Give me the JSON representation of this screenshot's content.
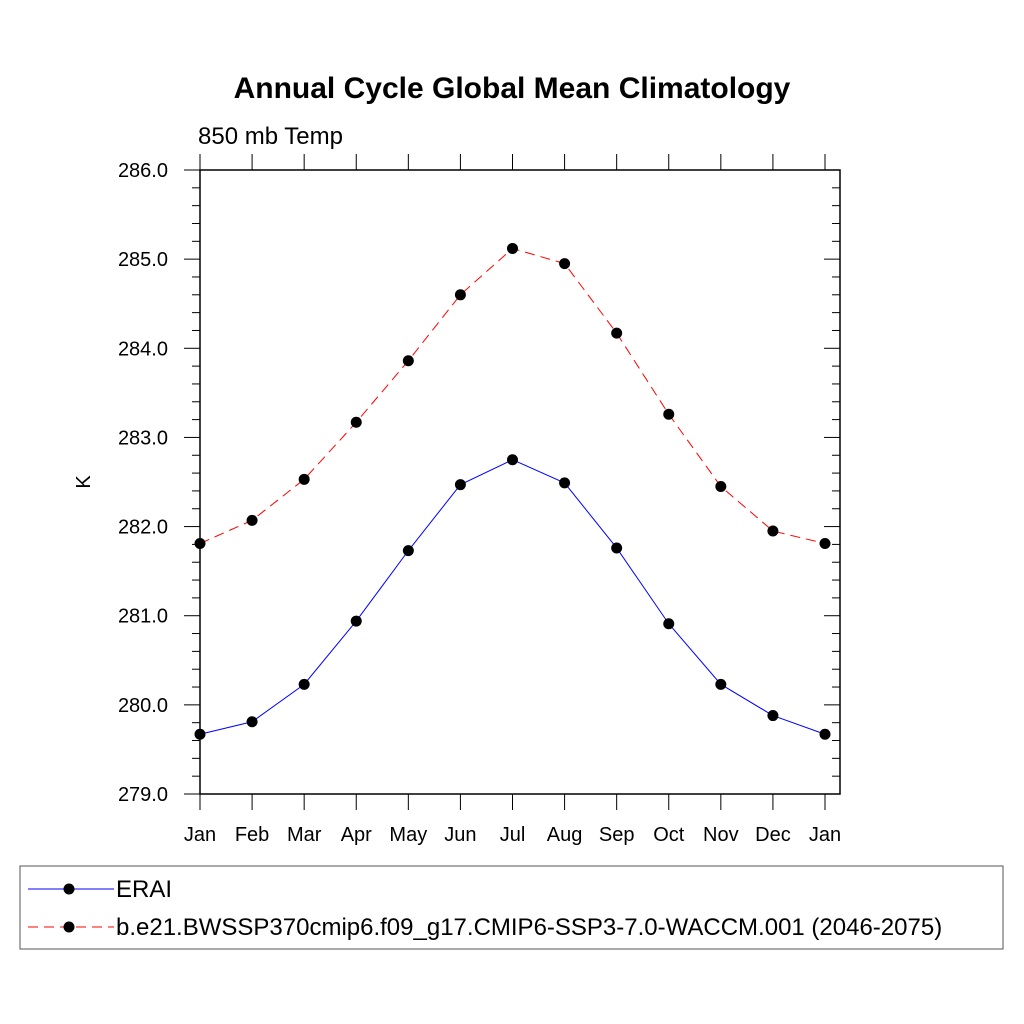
{
  "chart_data": {
    "type": "line",
    "title": "Annual Cycle Global Mean Climatology",
    "subtitle": "850 mb Temp",
    "xlabel": "",
    "ylabel": "K",
    "categories": [
      "Jan",
      "Feb",
      "Mar",
      "Apr",
      "May",
      "Jun",
      "Jul",
      "Aug",
      "Sep",
      "Oct",
      "Nov",
      "Dec",
      "Jan"
    ],
    "ylim": [
      279.0,
      286.0
    ],
    "yticks": [
      "279.0",
      "280.0",
      "281.0",
      "282.0",
      "283.0",
      "284.0",
      "285.0",
      "286.0"
    ],
    "grid": false,
    "legend_position": "bottom",
    "series": [
      {
        "name": "ERAI",
        "color": "#0000ff",
        "line_style": "solid",
        "values": [
          279.67,
          279.81,
          280.23,
          280.94,
          281.73,
          282.47,
          282.75,
          282.49,
          281.76,
          280.91,
          280.23,
          279.88,
          279.67
        ]
      },
      {
        "name": "b.e21.BWSSP370cmip6.f09_g17.CMIP6-SSP3-7.0-WACCM.001 (2046-2075)",
        "color": "#ff0000",
        "line_style": "dashed",
        "values": [
          281.81,
          282.07,
          282.53,
          283.17,
          283.86,
          284.6,
          285.12,
          284.95,
          284.17,
          283.26,
          282.45,
          281.95,
          281.81
        ]
      }
    ]
  }
}
